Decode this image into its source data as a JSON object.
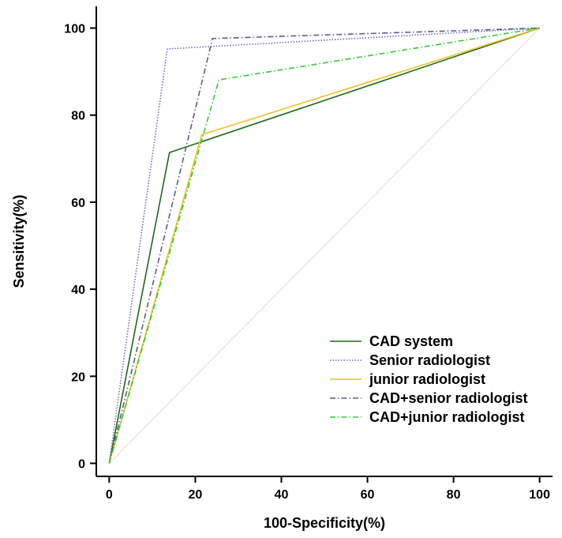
{
  "chart_data": {
    "type": "line",
    "xlabel": "100-Specificity(%)",
    "ylabel": "Sensitivity(%)",
    "xlim": [
      -3,
      103
    ],
    "ylim": [
      -3,
      105
    ],
    "xticks": [
      0,
      20,
      40,
      60,
      80,
      100
    ],
    "yticks": [
      0,
      20,
      40,
      60,
      80,
      100
    ],
    "grid": false,
    "legend_position": "bottom-right",
    "reference_line": {
      "x": [
        0,
        100
      ],
      "y": [
        0,
        100
      ],
      "color": "#e8a0a0",
      "style": "dotted"
    },
    "series": [
      {
        "name": "CAD system",
        "x": [
          0,
          14,
          100
        ],
        "y": [
          0,
          71.4,
          100
        ],
        "color": "#1a6b1a",
        "style": "solid"
      },
      {
        "name": "Senior radiologist",
        "x": [
          0,
          13.5,
          100
        ],
        "y": [
          0,
          95.2,
          100
        ],
        "color": "#6b6bb5",
        "style": "dotted"
      },
      {
        "name": "junior radiologist",
        "x": [
          0,
          21.5,
          100
        ],
        "y": [
          0,
          75.5,
          100
        ],
        "color": "#f0c020",
        "style": "solid"
      },
      {
        "name": "CAD+senior radiologist",
        "x": [
          0,
          24,
          100
        ],
        "y": [
          0,
          97.6,
          100
        ],
        "color": "#5a5a9a",
        "style": "dashdot"
      },
      {
        "name": "CAD+junior radiologist",
        "x": [
          0,
          25.5,
          100
        ],
        "y": [
          0,
          88.1,
          100
        ],
        "color": "#33cc33",
        "style": "dashdot"
      }
    ]
  }
}
